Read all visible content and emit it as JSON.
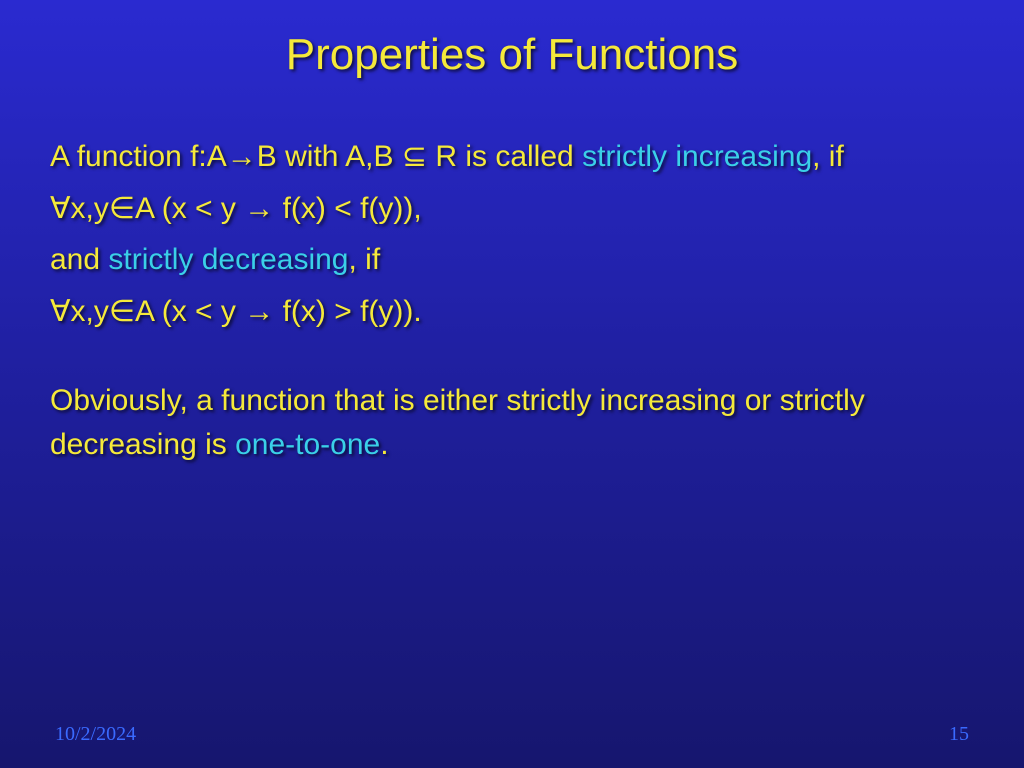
{
  "title": "Properties of Functions",
  "lines": {
    "l1a": "A function f:A",
    "l1b": "B with A,B ",
    "l1c": " R is called ",
    "l1_hl": "strictly increasing",
    "l1d": ", if",
    "l2a": "x,y",
    "l2b": "A (x < y ",
    "l2c": " f(x) < f(y)),",
    "l3a": "and ",
    "l3_hl": "strictly decreasing",
    "l3b": ", if",
    "l4a": "x,y",
    "l4b": "A (x < y ",
    "l4c": " f(x) > f(y)).",
    "l5a": "Obviously, a function that is either strictly increasing or strictly decreasing is ",
    "l5_hl": "one-to-one",
    "l5b": "."
  },
  "symbols": {
    "arrow": "→",
    "subset": "⊆",
    "forall": "∀",
    "elem": "∈",
    "implies": "→"
  },
  "footer": {
    "date": "10/2/2024",
    "page": "15"
  },
  "colors": {
    "title": "#f5e93a",
    "body": "#f5e93a",
    "highlight": "#3ad0e8",
    "footer": "#3a6aff",
    "bg_top": "#2a2ad0",
    "bg_bottom": "#16166e"
  },
  "fonts": {
    "title_size_pt": 44,
    "body_size_pt": 30,
    "footer_size_pt": 20,
    "family": "Comic Sans MS"
  }
}
